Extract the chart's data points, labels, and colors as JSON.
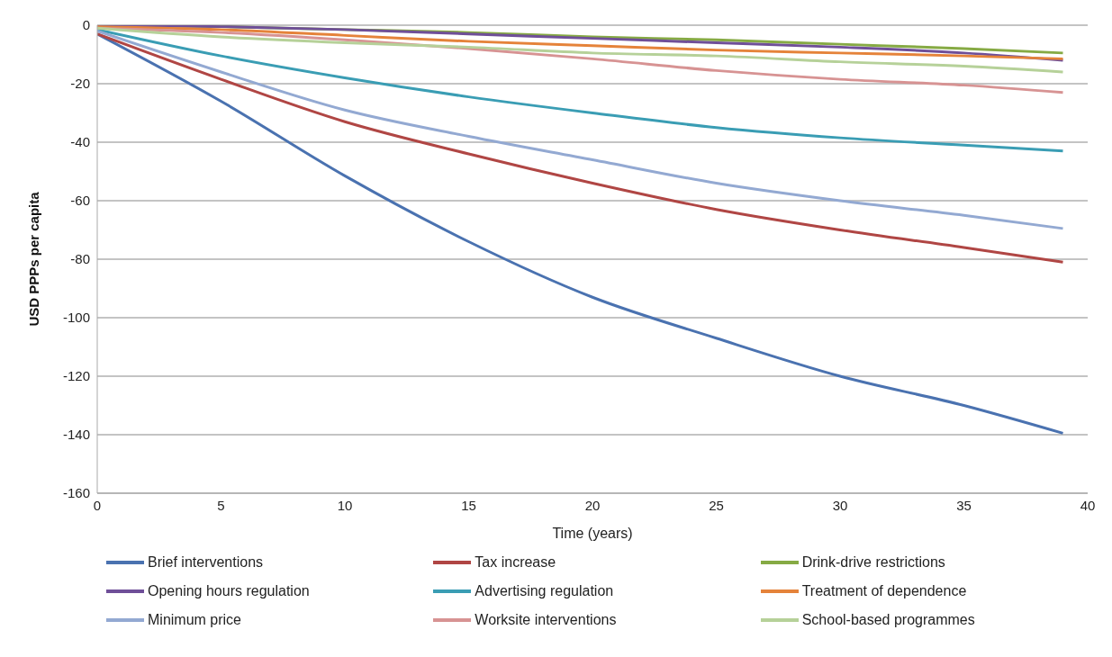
{
  "chart_data": {
    "type": "line",
    "xlabel": "Time (years)",
    "ylabel": "USD PPPs per capita",
    "x": [
      0,
      5,
      10,
      15,
      20,
      25,
      30,
      35,
      39
    ],
    "series": [
      {
        "name": "Brief interventions",
        "color": "#4a72b0",
        "values": [
          -3,
          -26,
          -51.5,
          -74,
          -93,
          -107,
          -120,
          -130,
          -139.5
        ]
      },
      {
        "name": "Tax increase",
        "color": "#b04644",
        "values": [
          -3,
          -18.5,
          -33,
          -44,
          -54,
          -63,
          -70,
          -76,
          -81
        ]
      },
      {
        "name": "Drink-drive restrictions",
        "color": "#86aa44",
        "values": [
          0,
          -0.5,
          -1.5,
          -2.5,
          -4,
          -5,
          -6.5,
          -8,
          -9.5
        ]
      },
      {
        "name": "Opening hours regulation",
        "color": "#6f4f98",
        "values": [
          0,
          -0.5,
          -1.5,
          -3,
          -4.5,
          -6,
          -7.5,
          -9.5,
          -12
        ]
      },
      {
        "name": "Advertising regulation",
        "color": "#3a9db4",
        "values": [
          -1.5,
          -10.5,
          -18,
          -24.5,
          -30,
          -35,
          -38.5,
          -41,
          -43
        ]
      },
      {
        "name": "Treatment of dependence",
        "color": "#e5833a",
        "values": [
          -0.5,
          -1.5,
          -3.5,
          -5.5,
          -7,
          -8.5,
          -9.5,
          -10.5,
          -11.5
        ]
      },
      {
        "name": "Minimum price",
        "color": "#93a9d2",
        "values": [
          -2,
          -16,
          -29,
          -38,
          -46,
          -54,
          -60,
          -65,
          -69.5
        ]
      },
      {
        "name": "Worksite interventions",
        "color": "#d79393",
        "values": [
          -1,
          -2.5,
          -5,
          -8,
          -11.5,
          -15.5,
          -18.5,
          -20.5,
          -23
        ]
      },
      {
        "name": "School-based programmes",
        "color": "#b6d199",
        "values": [
          -1,
          -4,
          -6,
          -7.5,
          -9.5,
          -10.5,
          -12.5,
          -14,
          -16
        ]
      }
    ],
    "xlim": [
      0,
      40
    ],
    "xticks": [
      0,
      5,
      10,
      15,
      20,
      25,
      30,
      35,
      40
    ],
    "ylim": [
      -160,
      0
    ],
    "yticks": [
      -160,
      -140,
      -120,
      -100,
      -80,
      -60,
      -40,
      -20,
      0
    ],
    "grid": "y",
    "legend": "bottom",
    "marker": "none",
    "line_style": "solid"
  }
}
